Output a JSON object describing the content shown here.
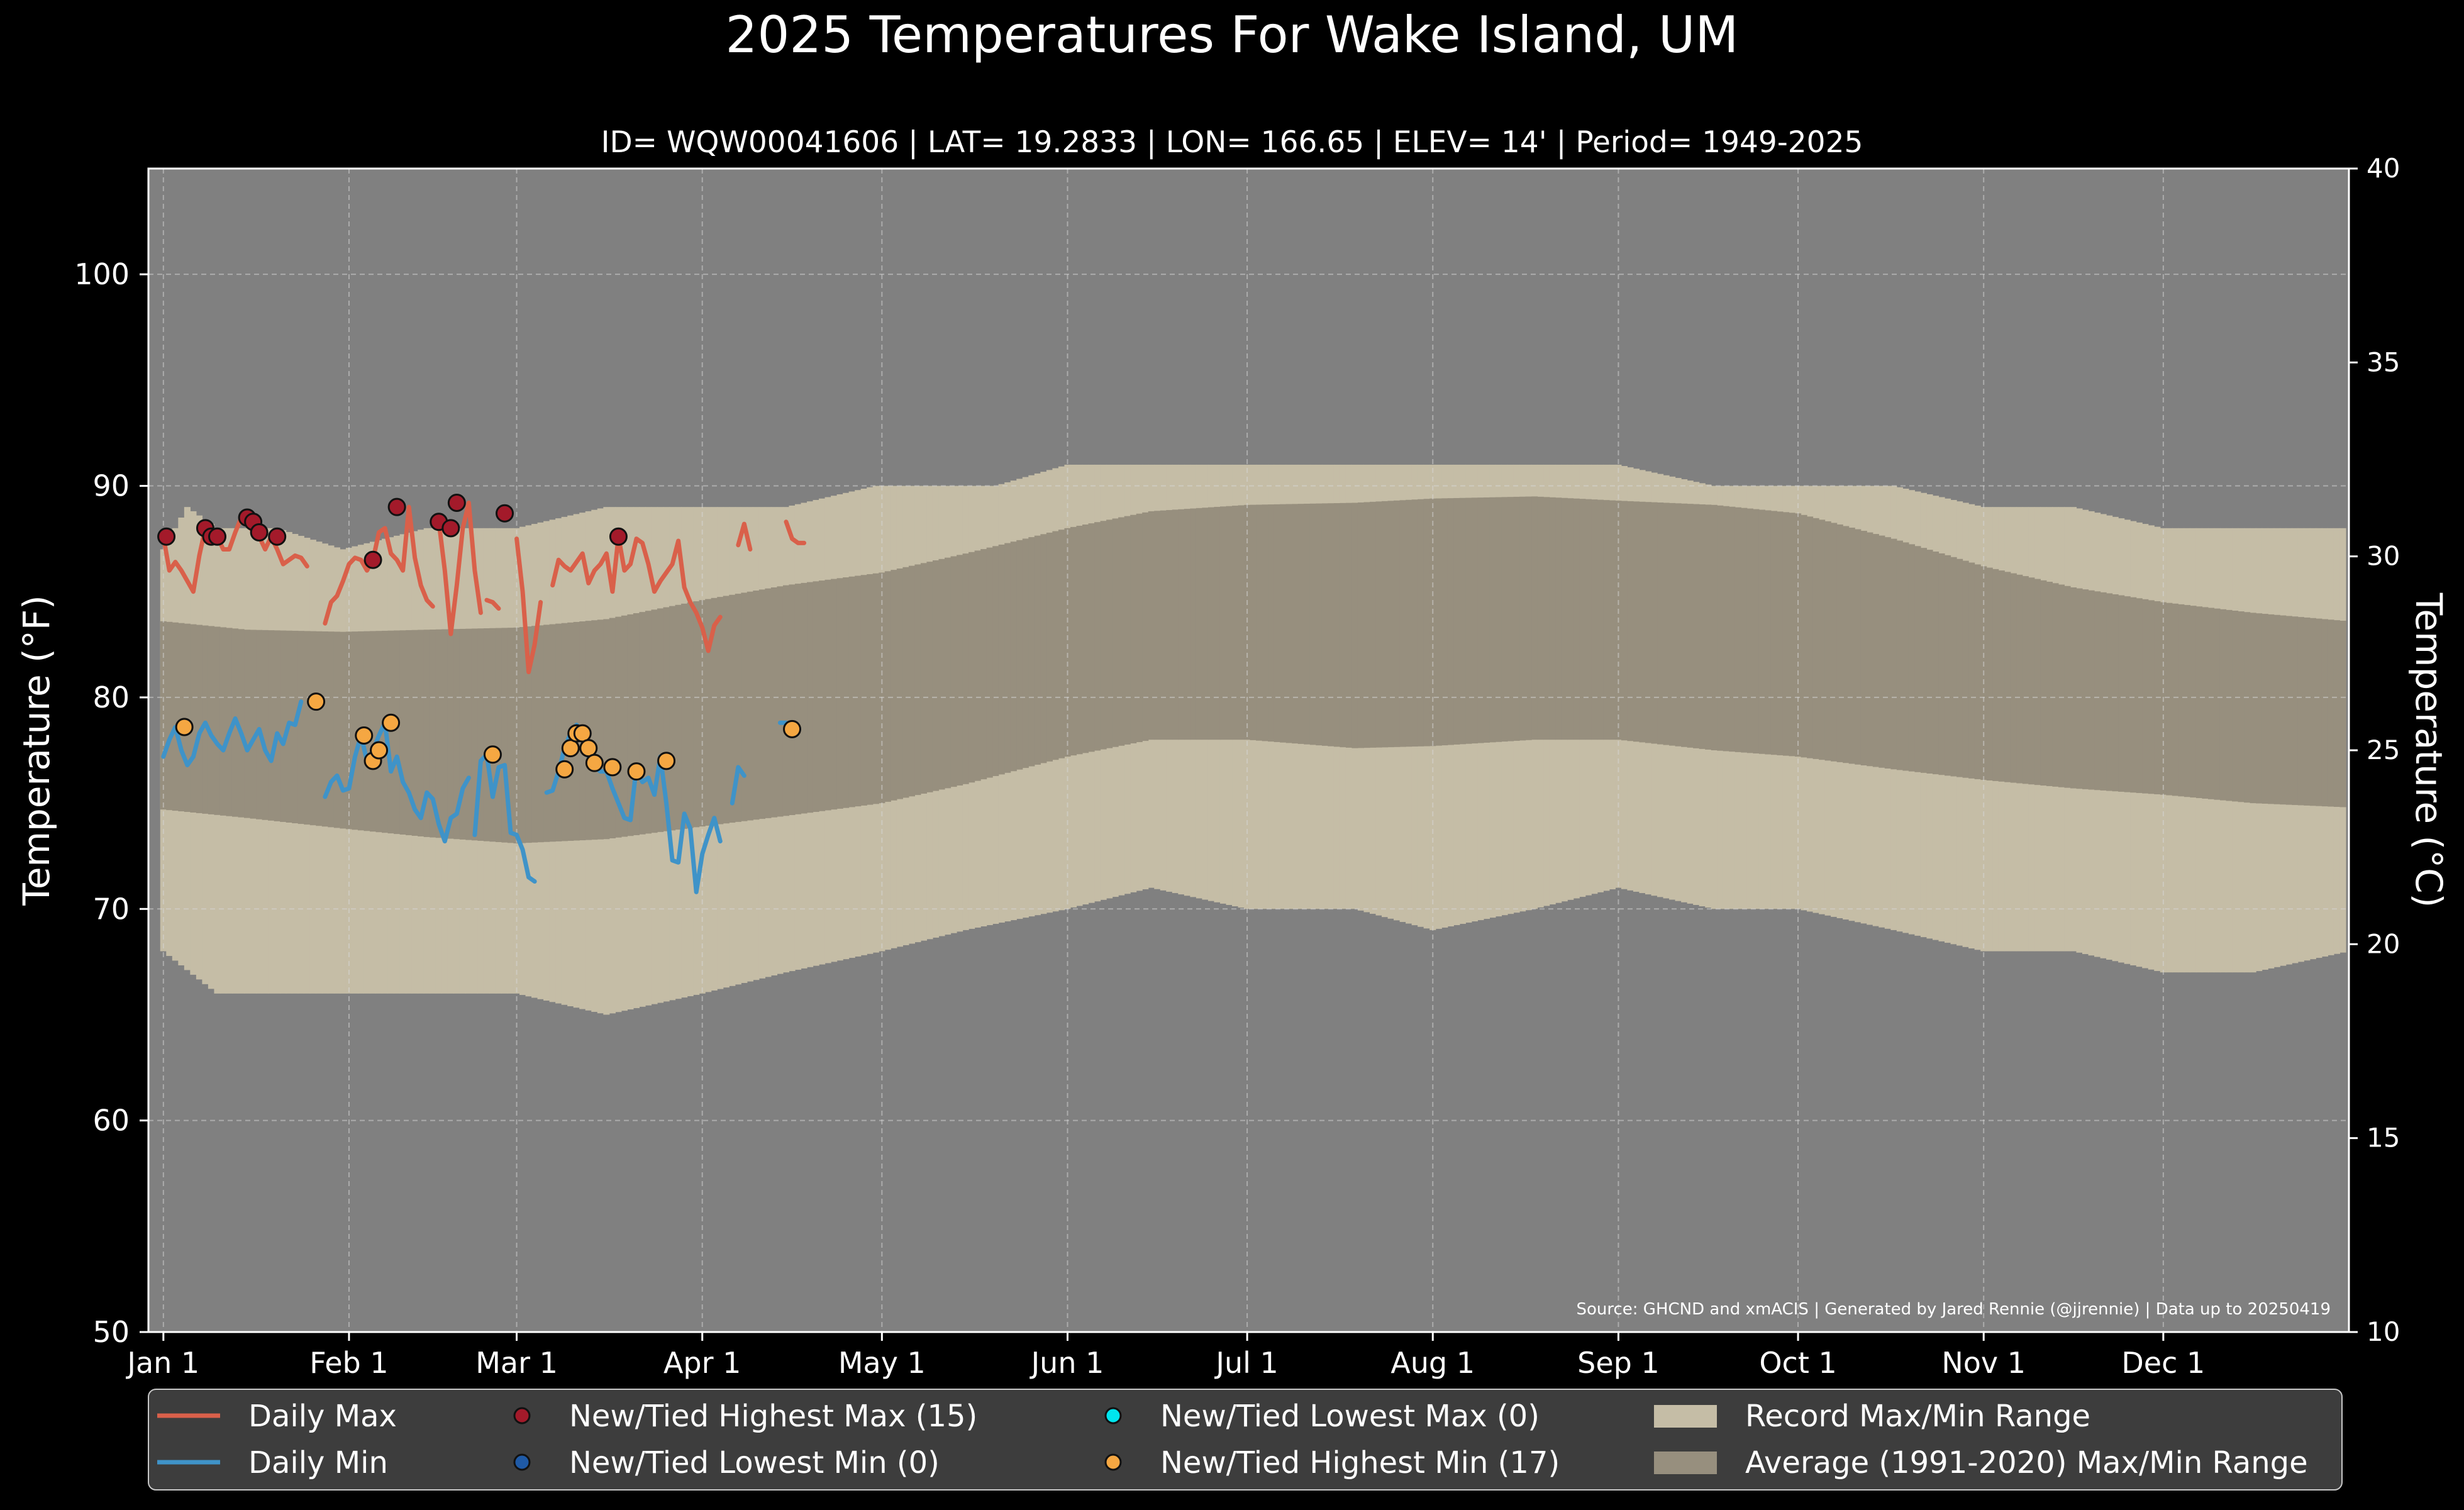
{
  "chart_data": {
    "type": "bar",
    "title": "2025 Temperatures For Wake Island, UM",
    "subtitle": "ID= WQW00041606 | LAT= 19.2833 | LON= 166.65 | ELEV= 14' | Period= 1949-2025",
    "ylabel_left": "Temperature ($^\\circ$F)",
    "ylabel_left_display": "Temperature (°F)",
    "ylabel_right_display": "Temperature (°C)",
    "ylim_f": [
      50,
      105
    ],
    "yticks_f": [
      50,
      60,
      70,
      80,
      90,
      100
    ],
    "ylim_c": [
      10,
      40
    ],
    "yticks_c": [
      10,
      15,
      20,
      25,
      30,
      35,
      40
    ],
    "xlim_day": [
      -1.5,
      366
    ],
    "x_ticks": [
      {
        "label": "Jan 1",
        "day": 1
      },
      {
        "label": "Feb 1",
        "day": 32
      },
      {
        "label": "Mar 1",
        "day": 60
      },
      {
        "label": "Apr 1",
        "day": 91
      },
      {
        "label": "May 1",
        "day": 121
      },
      {
        "label": "Jun 1",
        "day": 152
      },
      {
        "label": "Jul 1",
        "day": 182
      },
      {
        "label": "Aug 1",
        "day": 213
      },
      {
        "label": "Sep 1",
        "day": 244
      },
      {
        "label": "Oct 1",
        "day": 274
      },
      {
        "label": "Nov 1",
        "day": 305
      },
      {
        "label": "Dec 1",
        "day": 335
      }
    ],
    "grid": true,
    "source_note": "Source: GHCND and xmACIS | Generated by Jared Rennie (@jjrennie) | Data up to 20250419",
    "colors": {
      "background": "#000000",
      "plot_bg": "#808080",
      "record_range": "#c5bda6",
      "normal_range": "#978f7e",
      "daily_max": "#d9604a",
      "daily_min": "#3f93c8",
      "highest_max": "#a31a2a",
      "lowest_min": "#1f5aa6",
      "lowest_max": "#00e5ee",
      "highest_min": "#f5a742"
    },
    "record_max_anchors": [
      [
        1,
        87
      ],
      [
        5,
        89
      ],
      [
        10,
        88
      ],
      [
        20,
        88
      ],
      [
        31,
        87
      ],
      [
        45,
        88
      ],
      [
        60,
        88
      ],
      [
        75,
        89
      ],
      [
        91,
        89
      ],
      [
        105,
        89
      ],
      [
        120,
        90
      ],
      [
        140,
        90
      ],
      [
        152,
        91
      ],
      [
        165,
        91
      ],
      [
        182,
        91
      ],
      [
        200,
        91
      ],
      [
        213,
        91
      ],
      [
        230,
        91
      ],
      [
        244,
        91
      ],
      [
        260,
        90
      ],
      [
        274,
        90
      ],
      [
        290,
        90
      ],
      [
        305,
        89
      ],
      [
        320,
        89
      ],
      [
        335,
        88
      ],
      [
        350,
        88
      ],
      [
        366,
        88
      ]
    ],
    "record_min_anchors": [
      [
        1,
        68
      ],
      [
        10,
        66
      ],
      [
        20,
        66
      ],
      [
        31,
        66
      ],
      [
        45,
        66
      ],
      [
        60,
        66
      ],
      [
        75,
        65
      ],
      [
        91,
        66
      ],
      [
        105,
        67
      ],
      [
        121,
        68
      ],
      [
        135,
        69
      ],
      [
        152,
        70
      ],
      [
        166,
        71
      ],
      [
        182,
        70
      ],
      [
        200,
        70
      ],
      [
        213,
        69
      ],
      [
        230,
        70
      ],
      [
        244,
        71
      ],
      [
        260,
        70
      ],
      [
        274,
        70
      ],
      [
        290,
        69
      ],
      [
        305,
        68
      ],
      [
        320,
        68
      ],
      [
        335,
        67
      ],
      [
        350,
        67
      ],
      [
        366,
        68
      ]
    ],
    "normal_max_anchors": [
      [
        1,
        83.6
      ],
      [
        15,
        83.2
      ],
      [
        31,
        83.1
      ],
      [
        45,
        83.2
      ],
      [
        60,
        83.3
      ],
      [
        75,
        83.7
      ],
      [
        91,
        84.6
      ],
      [
        105,
        85.3
      ],
      [
        121,
        85.9
      ],
      [
        135,
        86.8
      ],
      [
        152,
        88.0
      ],
      [
        166,
        88.8
      ],
      [
        182,
        89.1
      ],
      [
        200,
        89.2
      ],
      [
        213,
        89.4
      ],
      [
        230,
        89.5
      ],
      [
        244,
        89.3
      ],
      [
        260,
        89.1
      ],
      [
        274,
        88.7
      ],
      [
        290,
        87.5
      ],
      [
        305,
        86.2
      ],
      [
        320,
        85.2
      ],
      [
        335,
        84.5
      ],
      [
        350,
        84.0
      ],
      [
        366,
        83.6
      ]
    ],
    "normal_min_anchors": [
      [
        1,
        74.7
      ],
      [
        15,
        74.3
      ],
      [
        31,
        73.8
      ],
      [
        45,
        73.4
      ],
      [
        60,
        73.1
      ],
      [
        75,
        73.3
      ],
      [
        91,
        73.9
      ],
      [
        105,
        74.4
      ],
      [
        121,
        75.0
      ],
      [
        135,
        75.9
      ],
      [
        152,
        77.2
      ],
      [
        166,
        78.0
      ],
      [
        182,
        78.0
      ],
      [
        200,
        77.6
      ],
      [
        213,
        77.7
      ],
      [
        230,
        78.0
      ],
      [
        244,
        78.0
      ],
      [
        260,
        77.5
      ],
      [
        274,
        77.2
      ],
      [
        290,
        76.6
      ],
      [
        305,
        76.1
      ],
      [
        320,
        75.7
      ],
      [
        335,
        75.4
      ],
      [
        350,
        75.0
      ],
      [
        366,
        74.8
      ]
    ],
    "daily_max": [
      {
        "day": 1,
        "values": [
          87.6,
          86.0,
          86.4,
          86.0,
          85.5,
          85.0,
          86.7,
          88.0,
          87.6,
          87.6,
          87.0,
          87.0,
          87.8,
          88.5,
          88.3,
          87.8,
          87.6,
          87.0,
          87.6,
          87.0,
          86.3,
          86.5,
          86.7,
          86.6,
          86.2
        ]
      },
      {
        "day": 28,
        "values": [
          83.5,
          84.5,
          84.8,
          85.5,
          86.3,
          86.6,
          86.5,
          86.0,
          86.5,
          87.8,
          88.0,
          86.8,
          86.5,
          86.0,
          89.0,
          86.6,
          85.3,
          84.6,
          84.3
        ]
      },
      {
        "day": 47,
        "values": [
          88.3,
          86.0,
          83.0,
          85.3,
          88.0,
          89.2,
          86.0,
          84.0
        ]
      },
      {
        "day": 55,
        "values": [
          84.6,
          84.5,
          84.2
        ]
      },
      {
        "day": 59,
        "values": [
          88.7
        ]
      },
      {
        "day": 60,
        "values": [
          87.5,
          85.0,
          81.2,
          82.5,
          84.5
        ]
      },
      {
        "day": 66,
        "values": [
          85.3,
          86.5,
          86.2,
          86.0,
          86.4,
          86.8,
          85.4,
          86.0,
          86.3,
          86.8,
          85.0,
          87.6,
          86.0,
          86.3,
          87.5,
          87.3,
          86.3,
          85.0,
          85.5,
          85.9,
          86.3,
          87.4,
          85.2,
          84.5,
          84.0,
          83.3,
          82.2,
          83.4,
          83.8
        ]
      },
      {
        "day": 97,
        "values": [
          87.2,
          88.2,
          87.0
        ]
      },
      {
        "day": 105,
        "values": [
          88.3,
          87.5,
          87.3,
          87.3
        ]
      }
    ],
    "daily_min": [
      {
        "day": 1,
        "values": [
          77.2,
          78.0,
          78.6,
          77.5,
          76.8,
          77.2,
          78.3,
          78.8,
          78.2,
          77.8,
          77.5,
          78.3,
          79.0,
          78.3,
          77.5,
          78.0,
          78.5,
          77.5,
          77.0,
          78.3,
          77.8,
          78.8,
          78.7,
          79.8
        ]
      },
      {
        "day": 28,
        "values": [
          75.3,
          76.0,
          76.3,
          75.6,
          75.7,
          77.2,
          78.2,
          77.0,
          77.5,
          78.2,
          78.8,
          76.5,
          77.2,
          76.0,
          75.5,
          74.7,
          74.3,
          75.5,
          75.2,
          74.0,
          73.2,
          74.3,
          74.5,
          75.7,
          76.2
        ]
      },
      {
        "day": 53,
        "values": [
          73.5,
          77.0,
          77.3,
          75.3,
          76.7,
          76.8,
          73.6,
          73.5,
          72.8,
          71.5,
          71.3
        ]
      },
      {
        "day": 65,
        "values": [
          75.5,
          75.6,
          76.5,
          77.6,
          78.3,
          78.7,
          78.4,
          77.2,
          76.7,
          76.5,
          76.5,
          75.7,
          75.0,
          74.3,
          74.2,
          76.7,
          76.0,
          76.2,
          75.4,
          77.2,
          75.0,
          72.3,
          72.2,
          74.5,
          73.8,
          70.8,
          72.6,
          73.5,
          74.3,
          73.2
        ]
      },
      {
        "day": 96,
        "values": [
          75.0,
          76.7,
          76.3
        ]
      },
      {
        "day": 104,
        "values": [
          78.8,
          78.8,
          78.5
        ]
      }
    ],
    "highest_max_points": [
      [
        1.5,
        87.6
      ],
      [
        8,
        88.0
      ],
      [
        9,
        87.6
      ],
      [
        10,
        87.6
      ],
      [
        15,
        88.5
      ],
      [
        16,
        88.3
      ],
      [
        17,
        87.8
      ],
      [
        20,
        87.6
      ],
      [
        36,
        86.5
      ],
      [
        40,
        89.0
      ],
      [
        47,
        88.3
      ],
      [
        49,
        88.0
      ],
      [
        50,
        89.2
      ],
      [
        58,
        88.7
      ],
      [
        77,
        87.6
      ]
    ],
    "highest_min_points": [
      [
        4.5,
        78.6
      ],
      [
        26.5,
        79.8
      ],
      [
        34.5,
        78.2
      ],
      [
        36,
        77.0
      ],
      [
        37,
        77.5
      ],
      [
        39,
        78.8
      ],
      [
        56,
        77.3
      ],
      [
        68,
        76.6
      ],
      [
        69,
        77.6
      ],
      [
        70,
        78.3
      ],
      [
        71,
        78.3
      ],
      [
        72,
        77.6
      ],
      [
        73,
        76.9
      ],
      [
        76,
        76.7
      ],
      [
        80,
        76.5
      ],
      [
        85,
        77.0
      ],
      [
        106,
        78.5
      ]
    ],
    "legend": [
      {
        "label": "Daily Max",
        "kind": "line",
        "color": "#d9604a"
      },
      {
        "label": "Daily Min",
        "kind": "line",
        "color": "#3f93c8"
      },
      {
        "label": "New/Tied Highest Max (15)",
        "kind": "dot",
        "color": "#a31a2a"
      },
      {
        "label": "New/Tied Lowest Min (0)",
        "kind": "dot",
        "color": "#1f5aa6"
      },
      {
        "label": "New/Tied Lowest Max (0)",
        "kind": "dot",
        "color": "#00e5ee"
      },
      {
        "label": "New/Tied Highest Min (17)",
        "kind": "dot",
        "color": "#f5a742"
      },
      {
        "label": "Record Max/Min Range",
        "kind": "patch",
        "color": "#c5bda6"
      },
      {
        "label": "Average (1991-2020) Max/Min Range",
        "kind": "patch",
        "color": "#978f7e"
      }
    ]
  }
}
